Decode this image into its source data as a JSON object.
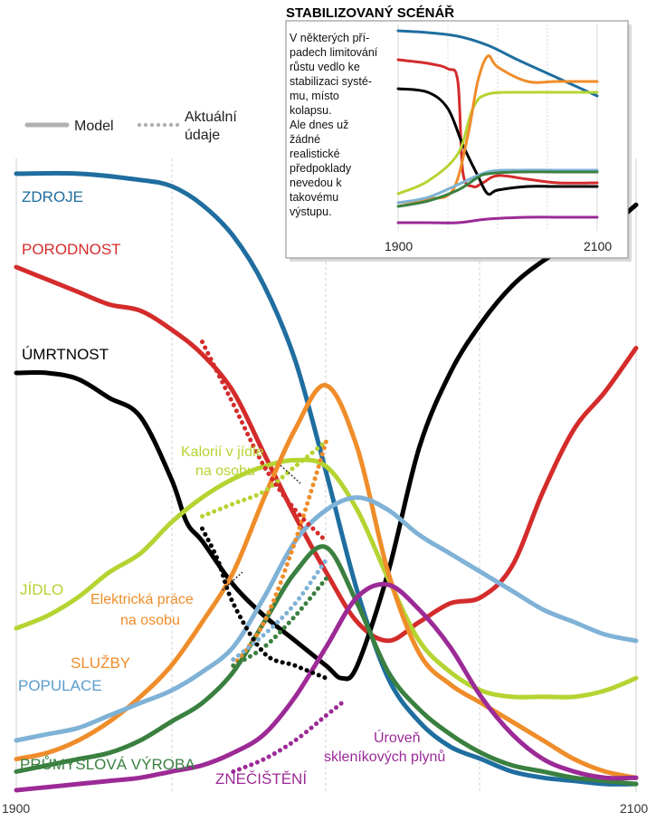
{
  "legend": {
    "model_label": "Model",
    "actual_label_line1": "Aktuální",
    "actual_label_line2": "údaje"
  },
  "colors": {
    "zdroje": "#1f6e9f",
    "porodnost": "#d42b2b",
    "umrtnost": "#000000",
    "jidlo": "#b5d432",
    "elektricka": "#ef8d2a",
    "sluzby": "#ef8d2a",
    "populace": "#7fb2d6",
    "prumysl": "#3a8040",
    "znecisteni": "#9c2a96",
    "grid": "#cfcfcf",
    "legend_model": "#b0b0b0",
    "legend_actual": "#b0b0b0"
  },
  "labels": {
    "zdroje": "ZDROJE",
    "porodnost": "PORODNOST",
    "umrtnost": "ÚMRTNOST",
    "jidlo": "JÍDLO",
    "kalorii1": "Kalorií v jídle",
    "kalorii2": "na osobu",
    "elektricka1": "Elektrická práce",
    "elektricka2": "na osobu",
    "sluzby": "SLUŽBY",
    "populace": "POPULACE",
    "prumysl": "PRŮMYSLOVÁ VÝROBA",
    "znecisteni": "ZNEČIŠTĚNÍ",
    "sklenik1": "Úroveň",
    "sklenik2": "skleníkových plynů"
  },
  "chart_data": [
    {
      "type": "line",
      "xlim": [
        1900,
        2100
      ],
      "x_tick_labels": [
        "1900",
        "2100"
      ],
      "grid": true,
      "legend_placement": "top-left",
      "series": [
        {
          "name": "ZDROJE",
          "color": "#1f6e9f",
          "x": [
            1900,
            1920,
            1940,
            1950,
            1960,
            1970,
            1980,
            1990,
            2000,
            2010,
            2020,
            2030,
            2040,
            2050,
            2060,
            2070,
            2080,
            2090,
            2100
          ],
          "y": [
            99,
            99,
            98,
            97,
            94,
            89,
            81,
            69,
            51,
            32,
            18,
            11,
            7,
            5,
            3,
            2,
            1.5,
            1,
            1
          ]
        },
        {
          "name": "PORODNOST",
          "color": "#d42b2b",
          "x": [
            1900,
            1910,
            1920,
            1930,
            1940,
            1950,
            1960,
            1970,
            1980,
            1990,
            2000,
            2010,
            2020,
            2030,
            2040,
            2050,
            2060,
            2070,
            2080,
            2090,
            2100
          ],
          "y": [
            84,
            82,
            80,
            78,
            77,
            74,
            70,
            64,
            54,
            44,
            35,
            27,
            24,
            27,
            30,
            31,
            36,
            48,
            58,
            64,
            71
          ]
        },
        {
          "name": "ÚMRTNOST",
          "color": "#000000",
          "x": [
            1900,
            1910,
            1920,
            1930,
            1940,
            1950,
            1955,
            1960,
            1970,
            1980,
            1990,
            2000,
            2005,
            2010,
            2020,
            2030,
            2040,
            2050,
            2060,
            2070,
            2080,
            2090,
            2100
          ],
          "y": [
            67,
            67,
            66,
            63,
            60,
            50,
            43,
            40,
            33,
            28,
            24,
            20,
            18,
            20,
            35,
            55,
            67,
            75,
            81,
            85,
            88,
            90,
            94
          ]
        },
        {
          "name": "JÍDLO",
          "color": "#b5d432",
          "x": [
            1900,
            1910,
            1920,
            1930,
            1940,
            1950,
            1960,
            1970,
            1980,
            1990,
            2000,
            2010,
            2020,
            2030,
            2040,
            2050,
            2060,
            2070,
            2080,
            2090,
            2100
          ],
          "y": [
            26,
            28,
            31,
            35,
            38,
            43,
            47,
            50,
            52,
            53,
            52,
            45,
            34,
            24,
            19,
            16,
            15,
            15,
            15,
            16,
            18
          ]
        },
        {
          "name": "SLUŽBY",
          "color": "#ef8d2a",
          "x": [
            1900,
            1910,
            1920,
            1930,
            1940,
            1950,
            1960,
            1970,
            1980,
            1990,
            2000,
            2010,
            2020,
            2030,
            2040,
            2050,
            2060,
            2070,
            2080,
            2090,
            2100
          ],
          "y": [
            5,
            6,
            8,
            11,
            15,
            20,
            27,
            35,
            47,
            58,
            65,
            55,
            35,
            22,
            17,
            14,
            11,
            8,
            5,
            3,
            2
          ]
        },
        {
          "name": "POPULACE",
          "color": "#7fb2d6",
          "x": [
            1900,
            1910,
            1920,
            1930,
            1940,
            1950,
            1960,
            1970,
            1980,
            1990,
            2000,
            2010,
            2020,
            2030,
            2040,
            2050,
            2060,
            2070,
            2080,
            2090,
            2100
          ],
          "y": [
            8,
            9,
            10,
            12,
            14,
            16,
            19,
            23,
            31,
            40,
            45,
            47,
            45,
            41,
            38,
            35,
            32,
            29,
            27,
            25,
            24
          ]
        },
        {
          "name": "PRŮMYSLOVÁ VÝROBA",
          "color": "#3a8040",
          "x": [
            1900,
            1910,
            1920,
            1930,
            1940,
            1950,
            1960,
            1970,
            1980,
            1990,
            2000,
            2010,
            2020,
            2030,
            2040,
            2050,
            2060,
            2070,
            2080,
            2090,
            2100
          ],
          "y": [
            3,
            4,
            5,
            6,
            8,
            11,
            14,
            19,
            27,
            35,
            39,
            30,
            19,
            13,
            9,
            6,
            4,
            3,
            2,
            1.5,
            1
          ]
        },
        {
          "name": "ZNEČIŠTĚNÍ",
          "color": "#9c2a96",
          "x": [
            1900,
            1910,
            1920,
            1930,
            1940,
            1950,
            1960,
            1970,
            1980,
            1990,
            2000,
            2010,
            2020,
            2030,
            2040,
            2050,
            2060,
            2070,
            2080,
            2090,
            2100
          ],
          "y": [
            0,
            0.5,
            1,
            1.5,
            2,
            3,
            4,
            6,
            9,
            15,
            23,
            31,
            33,
            29,
            23,
            15,
            9,
            5,
            3,
            2,
            2
          ]
        }
      ],
      "actual_data": [
        {
          "name": "Kalorií v jídle na osobu",
          "color": "#b5d432",
          "x": [
            1960,
            1970,
            1980,
            1990,
            2000
          ],
          "y": [
            44,
            46,
            48,
            52,
            56
          ]
        },
        {
          "name": "Elektrická práce na osobu",
          "color": "#ef8d2a",
          "x": [
            1970,
            1980,
            1990,
            2000
          ],
          "y": [
            20,
            27,
            40,
            56
          ]
        },
        {
          "name": "POPULACE",
          "color": "#7fb2d6",
          "x": [
            1970,
            1980,
            1990,
            2000
          ],
          "y": [
            21,
            25,
            30,
            37
          ]
        },
        {
          "name": "PRŮMYSLOVÁ VÝROBA",
          "color": "#3a8040",
          "x": [
            1970,
            1980,
            1990,
            2000
          ],
          "y": [
            20,
            23,
            28,
            34
          ]
        },
        {
          "name": "PORODNOST",
          "color": "#d42b2b",
          "x": [
            1960,
            1965,
            1970,
            1980,
            1990,
            2000
          ],
          "y": [
            72,
            67,
            62,
            52,
            45,
            40
          ]
        },
        {
          "name": "ÚMRTNOST",
          "color": "#000000",
          "x": [
            1960,
            1965,
            1970,
            1980,
            1990,
            2000
          ],
          "y": [
            42,
            37,
            30,
            22,
            20,
            18
          ]
        },
        {
          "name": "Úroveň skleníkových plynů",
          "color": "#9c2a96",
          "x": [
            1970,
            1980,
            1990,
            2000,
            2005
          ],
          "y": [
            3,
            5,
            8,
            12,
            14
          ]
        }
      ]
    },
    {
      "type": "line",
      "title": "STABILIZOVANÝ SCÉNÁŘ",
      "text_lines": [
        "V některých pří-",
        "padech limitování",
        "růstu vedlo ke",
        "stabilizaci systé-",
        "mu, místo",
        "kolapsu.",
        "Ale dnes už",
        "žádné",
        "realistické",
        "předpoklady",
        "nevedou k",
        "takovému",
        "výstupu."
      ],
      "xlim": [
        1900,
        2100
      ],
      "x_tick_labels": [
        "1900",
        "2100"
      ],
      "grid": true,
      "series": [
        {
          "color": "#1f6e9f",
          "x": [
            1900,
            1930,
            1960,
            1990,
            2020,
            2060,
            2100
          ],
          "y": [
            98,
            97,
            95,
            90,
            82,
            72,
            62
          ]
        },
        {
          "color": "#d42b2b",
          "x": [
            1900,
            1930,
            1950,
            1960,
            1965,
            1975,
            1985,
            2000,
            2030,
            2060,
            2100
          ],
          "y": [
            82,
            80,
            77,
            70,
            20,
            12,
            14,
            18,
            16,
            14,
            14
          ]
        },
        {
          "color": "#000000",
          "x": [
            1900,
            1930,
            1950,
            1965,
            1980,
            1990,
            2000,
            2030,
            2060,
            2100
          ],
          "y": [
            66,
            64,
            55,
            35,
            18,
            8,
            10,
            12,
            12,
            12
          ]
        },
        {
          "color": "#b5d432",
          "x": [
            1900,
            1930,
            1960,
            1975,
            1990,
            2030,
            2070,
            2100
          ],
          "y": [
            8,
            15,
            30,
            55,
            63,
            64,
            64,
            64
          ]
        },
        {
          "color": "#ef8d2a",
          "x": [
            1900,
            1930,
            1955,
            1970,
            1980,
            1990,
            2000,
            2030,
            2060,
            2100
          ],
          "y": [
            3,
            5,
            10,
            40,
            70,
            84,
            78,
            70,
            70,
            70
          ]
        },
        {
          "color": "#7fb2d6",
          "x": [
            1900,
            1930,
            1960,
            1990,
            2020,
            2060,
            2100
          ],
          "y": [
            3,
            6,
            13,
            20,
            21,
            21,
            21
          ]
        },
        {
          "color": "#3a8040",
          "x": [
            1900,
            1930,
            1960,
            1980,
            1990,
            2020,
            2060,
            2100
          ],
          "y": [
            1,
            4,
            10,
            17,
            19,
            20,
            20,
            20
          ]
        },
        {
          "color": "#9c2a96",
          "x": [
            1900,
            1930,
            1960,
            1990,
            2030,
            2060,
            2100
          ],
          "y": [
            -8,
            -8,
            -8,
            -6,
            -5,
            -5,
            -5
          ]
        }
      ]
    }
  ]
}
